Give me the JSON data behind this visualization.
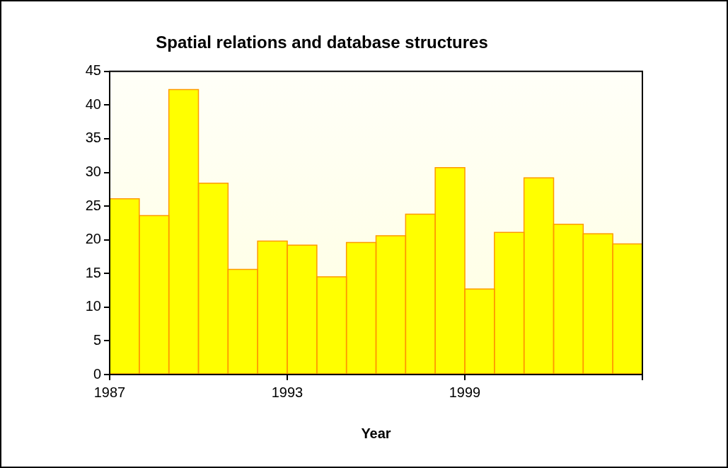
{
  "chart_data": {
    "type": "histogram",
    "title": "Spatial relations and database structures",
    "xlabel": "Year",
    "bins": [
      1987,
      1988,
      1989,
      1990,
      1991,
      1992,
      1993,
      1994,
      1995,
      1996,
      1997,
      1998,
      1999,
      2000,
      2001,
      2002,
      2003,
      2004,
      2005
    ],
    "values": [
      26.1,
      23.6,
      42.3,
      28.4,
      15.6,
      19.8,
      19.2,
      14.5,
      19.6,
      20.6,
      23.8,
      30.7,
      12.7,
      21.1,
      29.2,
      22.3,
      20.9,
      19.4
    ],
    "color": "#ffff00",
    "xlim": [
      1987,
      2005
    ],
    "xticks": [
      1987,
      1993,
      1999,
      {
        "value": 2005,
        "label": null
      }
    ],
    "ylim": [
      0,
      45
    ],
    "yticks": [
      0,
      5,
      10,
      15,
      20,
      25,
      30,
      35,
      40,
      45
    ]
  }
}
